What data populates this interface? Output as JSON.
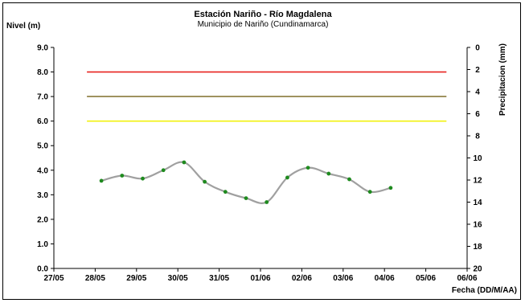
{
  "chart_data": {
    "type": "line",
    "title": "Estación Nariño  - Río Magdalena",
    "subtitle": "Municipio de Nariño (Cundinamarca)",
    "ylabel": "Nivel (m)",
    "y2label": "Precipitacion (mm)",
    "xlabel": "Fecha (DD/M/AA)",
    "ylim": [
      0,
      9
    ],
    "y2lim": [
      0,
      20
    ],
    "y2_reversed": true,
    "y_ticks": [
      "0.0",
      "1.0",
      "2.0",
      "3.0",
      "4.0",
      "5.0",
      "6.0",
      "7.0",
      "8.0",
      "9.0"
    ],
    "y2_ticks": [
      "0",
      "2",
      "4",
      "6",
      "8",
      "10",
      "12",
      "14",
      "16",
      "18",
      "20"
    ],
    "x_ticks": [
      "27/05",
      "28/05",
      "29/05",
      "30/05",
      "31/05",
      "01/06",
      "02/06",
      "03/06",
      "04/06",
      "05/06",
      "06/06"
    ],
    "grid": false,
    "threshold_lines": [
      {
        "value": 8.0,
        "color": "#e8231f",
        "x_start": 0.8,
        "x_end": 9.5
      },
      {
        "value": 7.0,
        "color": "#8a7a3c",
        "x_start": 0.8,
        "x_end": 9.5
      },
      {
        "value": 6.0,
        "color": "#f2f20f",
        "x_start": 0.8,
        "x_end": 9.5
      }
    ],
    "series": [
      {
        "color": "#a0a0a0",
        "marker_color": "#1e8a1e",
        "x": [
          1.15,
          1.65,
          2.15,
          2.65,
          3.15,
          3.65,
          4.15,
          4.65,
          5.15,
          5.65,
          6.15,
          6.65,
          7.15,
          7.65,
          8.15
        ],
        "y": [
          3.57,
          3.78,
          3.66,
          4.0,
          4.32,
          3.53,
          3.12,
          2.86,
          2.7,
          3.7,
          4.1,
          3.86,
          3.63,
          3.12,
          3.28
        ]
      }
    ]
  }
}
